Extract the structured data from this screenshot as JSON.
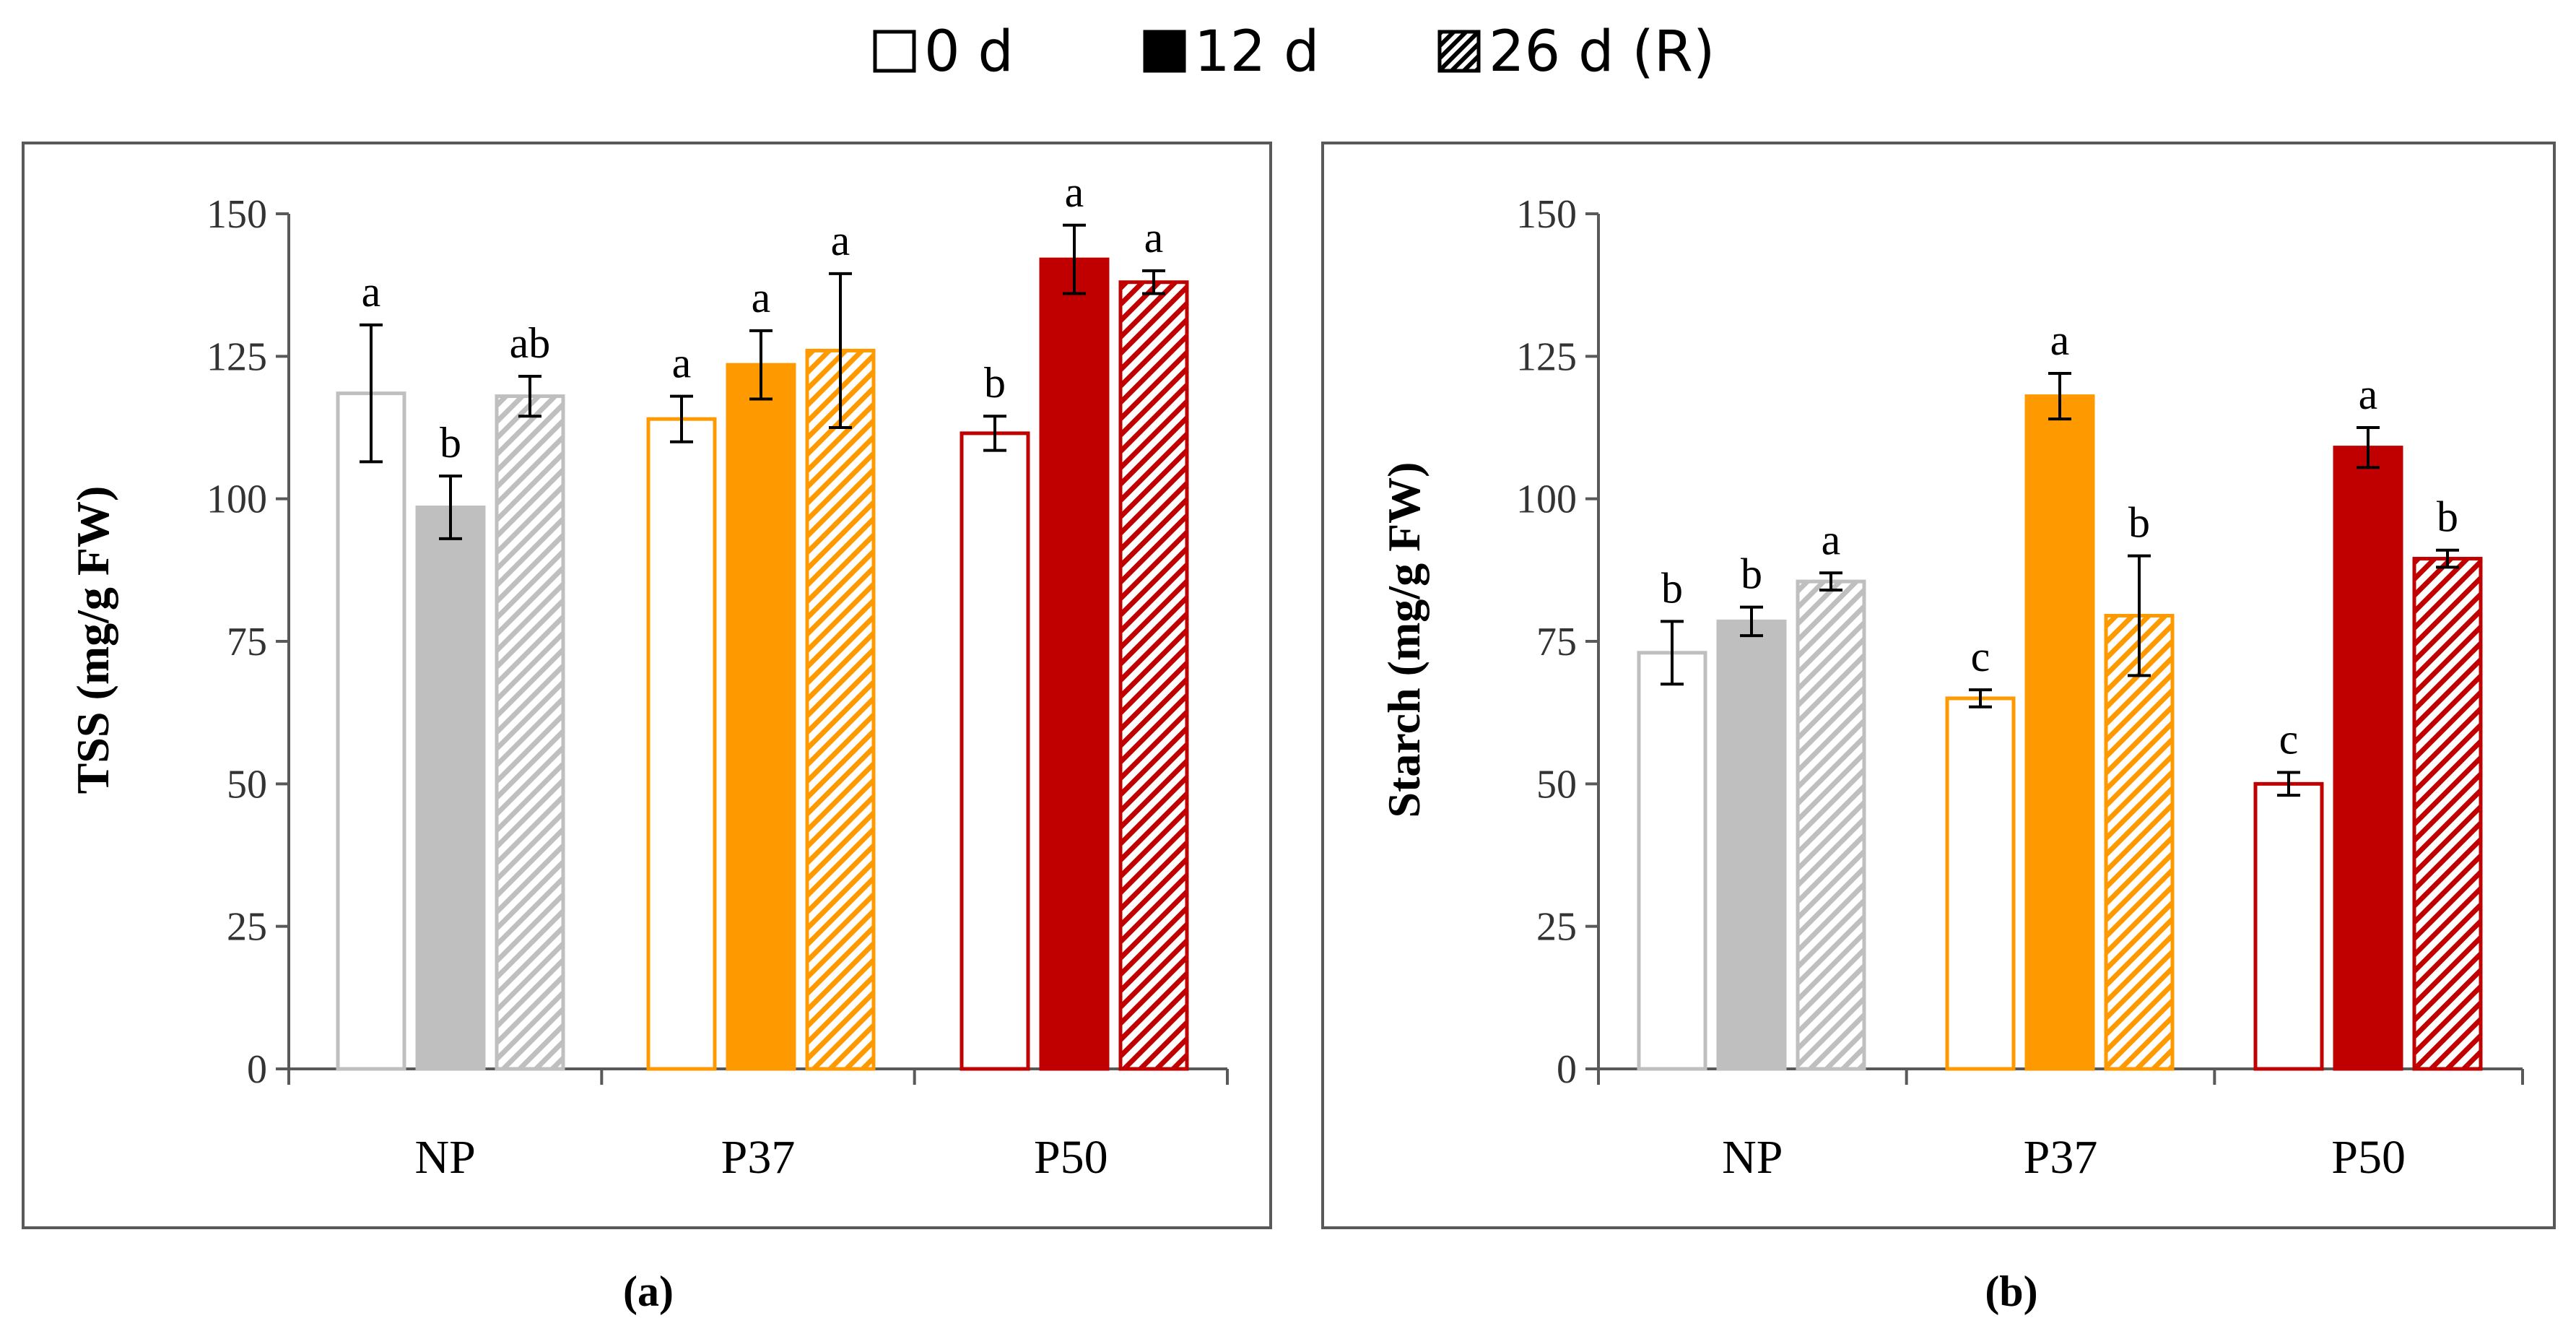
{
  "colors": {
    "NP": "#bfbfbf",
    "P37": "#ff9900",
    "P50": "#c00000",
    "axis": "#595959",
    "frame": "#595959",
    "error_bar": "#000000"
  },
  "legend": [
    {
      "label": "0 d",
      "style": "open"
    },
    {
      "label": "12 d",
      "style": "solid"
    },
    {
      "label": "26 d (R)",
      "style": "hatched"
    }
  ],
  "chart_data": [
    {
      "type": "bar",
      "panel": "(a)",
      "title": "",
      "xlabel": "",
      "ylabel": "TSS (mg/g FW)",
      "ylim": [
        0,
        150
      ],
      "yticks": [
        0,
        25,
        50,
        75,
        100,
        125,
        150
      ],
      "categories": [
        "NP",
        "P37",
        "P50"
      ],
      "series": [
        {
          "name": "0 d",
          "values": [
            118.5,
            114,
            111.5
          ],
          "errors": [
            12,
            4,
            3
          ],
          "letters": [
            "a",
            "a",
            "b"
          ]
        },
        {
          "name": "12 d",
          "values": [
            98.5,
            123.5,
            142
          ],
          "errors": [
            5.5,
            6,
            6
          ],
          "letters": [
            "b",
            "a",
            "a"
          ]
        },
        {
          "name": "26 d (R)",
          "values": [
            118,
            126,
            138
          ],
          "errors": [
            3.5,
            13.5,
            2
          ],
          "letters": [
            "ab",
            "a",
            "a"
          ]
        }
      ]
    },
    {
      "type": "bar",
      "panel": "(b)",
      "title": "",
      "xlabel": "",
      "ylabel": "Starch (mg/g FW)",
      "ylim": [
        0,
        150
      ],
      "yticks": [
        0,
        25,
        50,
        75,
        100,
        125,
        150
      ],
      "categories": [
        "NP",
        "P37",
        "P50"
      ],
      "series": [
        {
          "name": "0 d",
          "values": [
            73,
            65,
            50
          ],
          "errors": [
            5.5,
            1.5,
            2
          ],
          "letters": [
            "b",
            "c",
            "c"
          ]
        },
        {
          "name": "12 d",
          "values": [
            78.5,
            118,
            109
          ],
          "errors": [
            2.5,
            4,
            3.5
          ],
          "letters": [
            "b",
            "a",
            "a"
          ]
        },
        {
          "name": "26 d (R)",
          "values": [
            85.5,
            79.5,
            89.5
          ],
          "errors": [
            1.5,
            10.5,
            1.5
          ],
          "letters": [
            "a",
            "b",
            "b"
          ]
        }
      ]
    }
  ]
}
